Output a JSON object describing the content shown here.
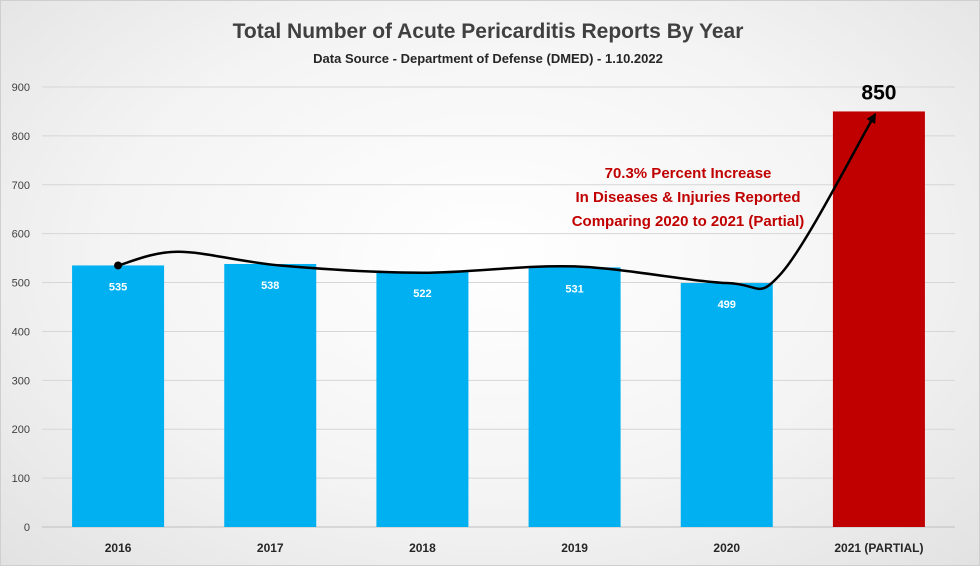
{
  "chart_data": {
    "type": "bar",
    "title": "Total Number of Acute Pericarditis Reports By Year",
    "subtitle": "Data Source - Department of Defense (DMED) - 1.10.2022",
    "categories": [
      "2016",
      "2017",
      "2018",
      "2019",
      "2020",
      "2021 (PARTIAL)"
    ],
    "values": [
      535,
      538,
      522,
      531,
      499,
      850
    ],
    "data_labels": [
      "535",
      "538",
      "522",
      "531",
      "499",
      "850"
    ],
    "bar_colors": [
      "#00b0f0",
      "#00b0f0",
      "#00b0f0",
      "#00b0f0",
      "#00b0f0",
      "#c00000"
    ],
    "ylim": [
      0,
      900
    ],
    "yticks": [
      0,
      100,
      200,
      300,
      400,
      500,
      600,
      700,
      800,
      900
    ],
    "ytick_labels": [
      "0",
      "100",
      "200",
      "300",
      "400",
      "500",
      "600",
      "700",
      "800",
      "900"
    ],
    "grid": true,
    "legend": false,
    "annotation": {
      "lines": [
        "70.3% Percent Increase",
        "In Diseases & Injuries Reported",
        "Comparing 2020 to 2021 (Partial)"
      ],
      "color": "#c00000"
    },
    "trend_arrow": true
  }
}
